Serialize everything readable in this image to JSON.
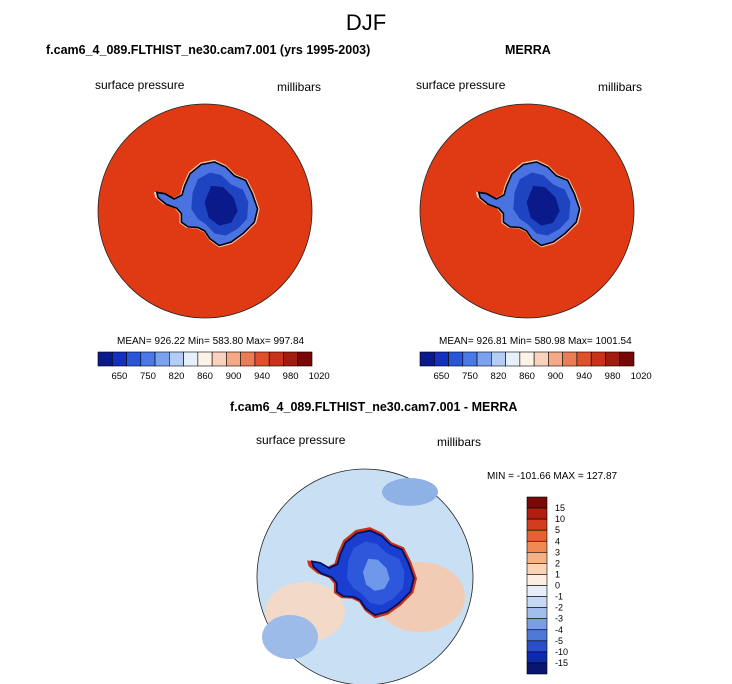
{
  "figure": {
    "title": "DJF",
    "panels": [
      {
        "title": "f.cam6_4_089.FLTHIST_ne30.cam7.001 (yrs 1995-2003)",
        "left_label": "surface pressure",
        "right_label": "millibars",
        "stats": "MEAN= 926.22   Min= 583.80   Max= 997.84"
      },
      {
        "title": "MERRA",
        "left_label": "surface pressure",
        "right_label": "millibars",
        "stats": "MEAN= 926.81   Min= 580.98   Max= 1001.54"
      },
      {
        "title": "f.cam6_4_089.FLTHIST_ne30.cam7.001 - MERRA",
        "left_label": "surface pressure",
        "right_label": "millibars",
        "stats": "MIN = -101.66  MAX = 127.87"
      }
    ]
  },
  "colors": {
    "ocean_field": "#e03a14",
    "continent_deep": "#0a1a8a",
    "diff_ocean": "#c9e0f4"
  },
  "chart_data": [
    {
      "type": "heatmap",
      "title": "f.cam6_4_089.FLTHIST_ne30.cam7.001 (yrs 1995-2003)",
      "variable": "surface pressure",
      "units": "millibars",
      "projection": "south polar stereographic",
      "mean": 926.22,
      "min": 583.8,
      "max": 997.84,
      "colorbar": {
        "tick_labels": [
          "650",
          "750",
          "820",
          "860",
          "900",
          "940",
          "980",
          "1020"
        ],
        "colors": [
          "#0a1a8a",
          "#1530c0",
          "#2a55d8",
          "#4a78e6",
          "#7aa2ef",
          "#b3cdf6",
          "#e6f0fb",
          "#fdf2e8",
          "#f9d2bb",
          "#f4aa88",
          "#ec7c58",
          "#e0502c",
          "#c8321a",
          "#a01c10",
          "#780808"
        ]
      }
    },
    {
      "type": "heatmap",
      "title": "MERRA",
      "variable": "surface pressure",
      "units": "millibars",
      "projection": "south polar stereographic",
      "mean": 926.81,
      "min": 580.98,
      "max": 1001.54,
      "colorbar": {
        "tick_labels": [
          "650",
          "750",
          "820",
          "860",
          "900",
          "940",
          "980",
          "1020"
        ],
        "colors": [
          "#0a1a8a",
          "#1530c0",
          "#2a55d8",
          "#4a78e6",
          "#7aa2ef",
          "#b3cdf6",
          "#e6f0fb",
          "#fdf2e8",
          "#f9d2bb",
          "#f4aa88",
          "#ec7c58",
          "#e0502c",
          "#c8321a",
          "#a01c10",
          "#780808"
        ]
      }
    },
    {
      "type": "heatmap",
      "title": "f.cam6_4_089.FLTHIST_ne30.cam7.001 - MERRA",
      "variable": "surface pressure",
      "units": "millibars",
      "projection": "south polar stereographic",
      "min": -101.66,
      "max": 127.87,
      "colorbar": {
        "orientation": "vertical",
        "tick_labels": [
          "15",
          "10",
          "5",
          "4",
          "3",
          "2",
          "1",
          "0",
          "-1",
          "-2",
          "-3",
          "-4",
          "-5",
          "-10",
          "-15"
        ],
        "colors": [
          "#7a0a08",
          "#b01e12",
          "#d43c1e",
          "#e8602c",
          "#f08a52",
          "#f5b185",
          "#fad3b8",
          "#fdeee2",
          "#e5eefa",
          "#c5d8f4",
          "#a2bdec",
          "#7a9ee2",
          "#4f79d6",
          "#2a4fc6",
          "#0d2aa8",
          "#081670"
        ]
      }
    }
  ]
}
